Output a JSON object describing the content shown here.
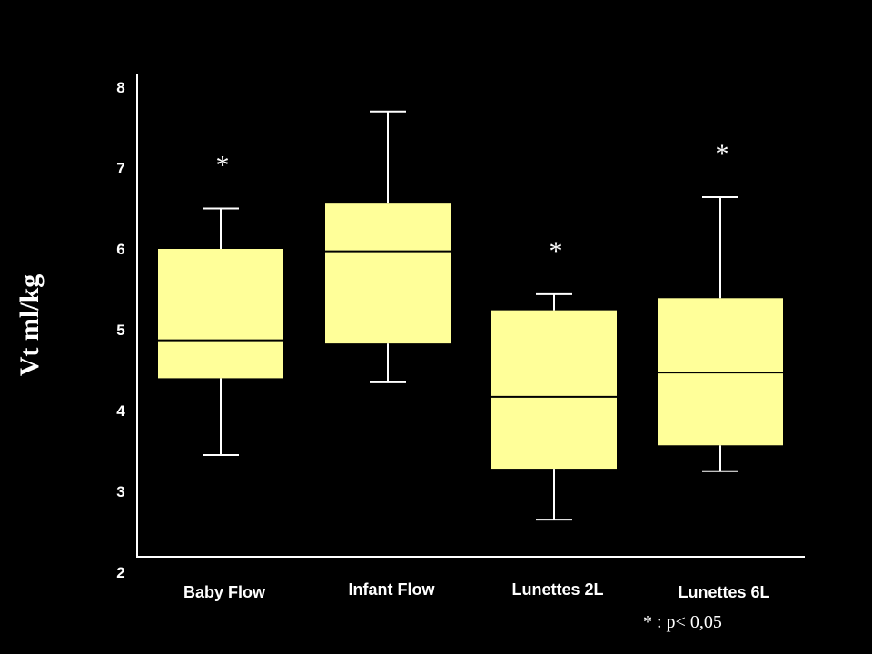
{
  "chart_data": {
    "type": "box",
    "title": "",
    "xlabel": "",
    "ylabel": "Vt ml/kg",
    "ylim": [
      2,
      8
    ],
    "yticks": [
      "2",
      "3",
      "4",
      "5",
      "6",
      "7",
      "8"
    ],
    "grid": false,
    "box_color": "#ffff99",
    "categories": [
      "Baby Flow",
      "Infant Flow",
      "Lunettes 2L",
      "Lunettes 6L"
    ],
    "series": [
      {
        "name": "Baby Flow",
        "whisker_low": 3.45,
        "q1": 4.4,
        "median": 4.87,
        "q3": 6.0,
        "whisker_high": 6.5,
        "significant": true
      },
      {
        "name": "Infant Flow",
        "whisker_low": 4.35,
        "q1": 4.83,
        "median": 5.97,
        "q3": 6.56,
        "whisker_high": 7.7,
        "significant": false
      },
      {
        "name": "Lunettes 2L",
        "whisker_low": 2.65,
        "q1": 3.28,
        "median": 4.17,
        "q3": 5.24,
        "whisker_high": 5.44,
        "significant": true
      },
      {
        "name": "Lunettes 6L",
        "whisker_low": 3.25,
        "q1": 3.57,
        "median": 4.47,
        "q3": 5.39,
        "whisker_high": 6.64,
        "significant": true
      }
    ],
    "significance_marker": "*",
    "annotation": "* : p< 0,05"
  }
}
